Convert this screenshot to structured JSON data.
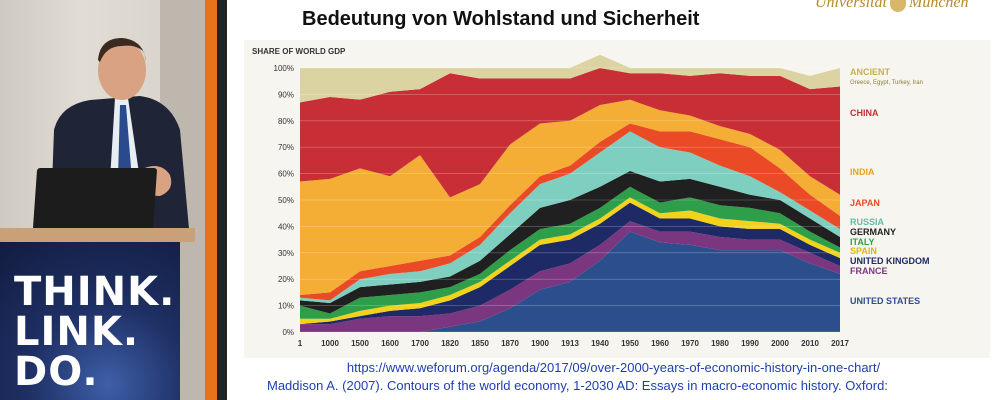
{
  "slide": {
    "title": "Bedeutung von Wohlstand und Sicherheit",
    "logo_text_left": "Universität",
    "logo_text_right": "München",
    "ref_url": "https://www.weforum.org/agenda/2017/09/over-2000-years-of-economic-history-in-one-chart/",
    "ref_cite": "Maddison A. (2007). Contours of the world economy, 1-2030 AD: Essays in macro-economic history. Oxford:"
  },
  "podium": {
    "lines": [
      "THINK.",
      "LINK.",
      "DO."
    ]
  },
  "chart_data": {
    "type": "area",
    "ylabel": "SHARE OF WORLD GDP",
    "ylim": [
      0,
      100
    ],
    "ytick_labels": [
      "0%",
      "10%",
      "20%",
      "30%",
      "40%",
      "50%",
      "60%",
      "70%",
      "80%",
      "90%",
      "100%"
    ],
    "x": [
      "1",
      "1000",
      "1500",
      "1600",
      "1700",
      "1820",
      "1850",
      "1870",
      "1900",
      "1913",
      "1940",
      "1950",
      "1960",
      "1970",
      "1980",
      "1990",
      "2000",
      "2010",
      "2017"
    ],
    "series": [
      {
        "name": "UNITED STATES",
        "color": "#2b4f8c",
        "values": [
          0,
          0,
          0,
          0,
          0,
          2,
          4,
          9,
          16,
          19,
          27,
          38,
          34,
          33,
          31,
          31,
          31,
          26,
          22
        ]
      },
      {
        "name": "FRANCE",
        "color": "#7b3680",
        "values": [
          3,
          3,
          5,
          6,
          6,
          5,
          6,
          7,
          7,
          7,
          6,
          4,
          4,
          5,
          5,
          4,
          4,
          4,
          3
        ]
      },
      {
        "name": "UNITED KINGDOM",
        "color": "#1d2a66",
        "values": [
          0,
          1,
          1,
          2,
          3,
          5,
          7,
          9,
          10,
          9,
          8,
          7,
          5,
          5,
          4,
          4,
          4,
          3,
          3
        ]
      },
      {
        "name": "SPAIN",
        "color": "#f2d21b",
        "values": [
          2,
          1,
          2,
          2,
          2,
          2,
          2,
          2,
          2,
          2,
          2,
          2,
          2,
          3,
          3,
          3,
          2,
          2,
          2
        ]
      },
      {
        "name": "ITALY",
        "color": "#2f9e4a",
        "values": [
          5,
          2,
          5,
          4,
          4,
          3,
          3,
          4,
          4,
          4,
          4,
          4,
          4,
          5,
          5,
          5,
          4,
          3,
          2
        ]
      },
      {
        "name": "GERMANY",
        "color": "#202020",
        "values": [
          2,
          4,
          4,
          4,
          4,
          4,
          5,
          6,
          8,
          9,
          8,
          6,
          8,
          7,
          7,
          5,
          5,
          5,
          4
        ]
      },
      {
        "name": "RUSSIA",
        "color": "#7fcfc0",
        "values": [
          1,
          1,
          3,
          4,
          4,
          5,
          6,
          8,
          9,
          10,
          13,
          15,
          13,
          10,
          8,
          7,
          3,
          3,
          3
        ]
      },
      {
        "name": "JAPAN",
        "color": "#ea4b26",
        "values": [
          1,
          3,
          3,
          3,
          4,
          3,
          3,
          3,
          3,
          3,
          4,
          3,
          6,
          8,
          10,
          11,
          9,
          6,
          5
        ]
      },
      {
        "name": "INDIA",
        "color": "#f4ad35",
        "values": [
          43,
          43,
          39,
          34,
          40,
          22,
          20,
          23,
          20,
          17,
          14,
          9,
          8,
          6,
          5,
          5,
          7,
          7,
          8
        ]
      },
      {
        "name": "CHINA",
        "color": "#c82e35",
        "values": [
          30,
          31,
          26,
          32,
          25,
          47,
          40,
          25,
          17,
          16,
          14,
          10,
          14,
          15,
          20,
          22,
          28,
          33,
          41
        ]
      },
      {
        "name": "ANCIENT",
        "color": "#dcd3a2",
        "values": [
          13,
          11,
          12,
          9,
          8,
          2,
          4,
          4,
          4,
          4,
          5,
          2,
          2,
          3,
          2,
          3,
          3,
          5,
          7
        ]
      }
    ],
    "legend_sublabels": {
      "ANCIENT": "Greece, Egypt, Turkey, Iran"
    },
    "legend": [
      {
        "label": "ANCIENT",
        "color": "#c5b24c"
      },
      {
        "label": "CHINA",
        "color": "#c82e35"
      },
      {
        "label": "INDIA",
        "color": "#e6a222"
      },
      {
        "label": "JAPAN",
        "color": "#ea4b26"
      },
      {
        "label": "RUSSIA",
        "color": "#5fbfa9"
      },
      {
        "label": "GERMANY",
        "color": "#202020"
      },
      {
        "label": "ITALY",
        "color": "#2f9e4a"
      },
      {
        "label": "SPAIN",
        "color": "#d8b80f"
      },
      {
        "label": "UNITED KINGDOM",
        "color": "#1d2a66"
      },
      {
        "label": "FRANCE",
        "color": "#7b3680"
      },
      {
        "label": "UNITED STATES",
        "color": "#2b4f8c"
      }
    ],
    "grid": true
  }
}
